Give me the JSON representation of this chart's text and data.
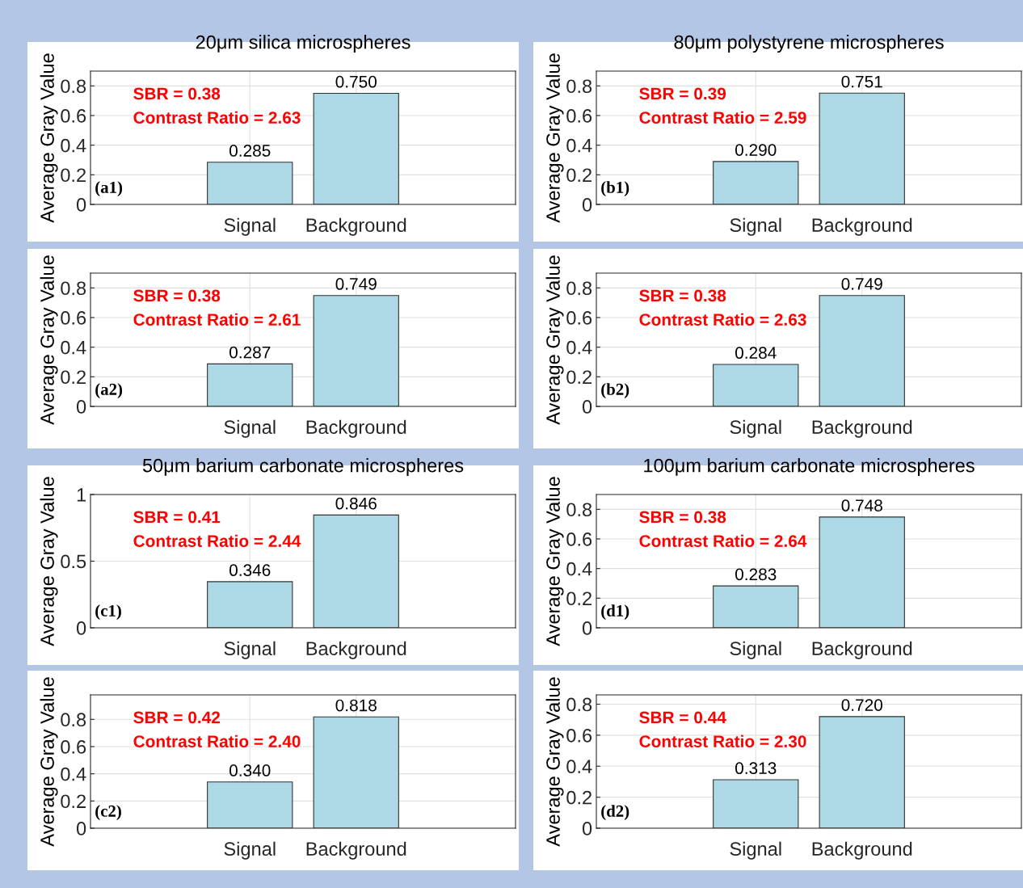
{
  "chart_data": [
    {
      "type": "bar",
      "title": "20μm silica microspheres",
      "ylabel": "Average Gray Value",
      "categories": [
        "Signal",
        "Background"
      ],
      "values": [
        0.285,
        0.75
      ],
      "value_labels": [
        "0.285",
        "0.750"
      ],
      "color": "#add8e6",
      "ylim": [
        0,
        0.9
      ],
      "yticks": [
        0,
        0.2,
        0.4,
        0.6,
        0.8
      ],
      "grid": true,
      "annotations": [
        "SBR = 0.38",
        "Contrast Ratio = 2.63",
        "(a1)"
      ]
    },
    {
      "type": "bar",
      "title": "80μm polystyrene microspheres",
      "ylabel": "Average Gray Value",
      "categories": [
        "Signal",
        "Background"
      ],
      "values": [
        0.29,
        0.751
      ],
      "value_labels": [
        "0.290",
        "0.751"
      ],
      "color": "#add8e6",
      "ylim": [
        0,
        0.9
      ],
      "yticks": [
        0,
        0.2,
        0.4,
        0.6,
        0.8
      ],
      "grid": true,
      "annotations": [
        "SBR = 0.39",
        "Contrast Ratio = 2.59",
        "(b1)"
      ]
    },
    {
      "type": "bar",
      "ylabel": "Average Gray Value",
      "categories": [
        "Signal",
        "Background"
      ],
      "values": [
        0.287,
        0.749
      ],
      "value_labels": [
        "0.287",
        "0.749"
      ],
      "color": "#add8e6",
      "ylim": [
        0,
        0.9
      ],
      "yticks": [
        0,
        0.2,
        0.4,
        0.6,
        0.8
      ],
      "grid": true,
      "annotations": [
        "SBR = 0.38",
        "Contrast Ratio = 2.61",
        "(a2)"
      ]
    },
    {
      "type": "bar",
      "ylabel": "Average Gray Value",
      "categories": [
        "Signal",
        "Background"
      ],
      "values": [
        0.284,
        0.749
      ],
      "value_labels": [
        "0.284",
        "0.749"
      ],
      "color": "#add8e6",
      "ylim": [
        0,
        0.9
      ],
      "yticks": [
        0,
        0.2,
        0.4,
        0.6,
        0.8
      ],
      "grid": true,
      "annotations": [
        "SBR = 0.38",
        "Contrast Ratio = 2.63",
        "(b2)"
      ]
    },
    {
      "type": "bar",
      "title": "50μm barium carbonate microspheres",
      "ylabel": "Average Gray Value",
      "categories": [
        "Signal",
        "Background"
      ],
      "values": [
        0.346,
        0.846
      ],
      "value_labels": [
        "0.346",
        "0.846"
      ],
      "color": "#add8e6",
      "ylim": [
        0,
        1
      ],
      "yticks": [
        0,
        0.5,
        1
      ],
      "grid": true,
      "annotations": [
        "SBR = 0.41",
        "Contrast Ratio = 2.44",
        "(c1)"
      ]
    },
    {
      "type": "bar",
      "title": "100μm barium carbonate microspheres",
      "ylabel": "Average Gray Value",
      "categories": [
        "Signal",
        "Background"
      ],
      "values": [
        0.283,
        0.748
      ],
      "value_labels": [
        "0.283",
        "0.748"
      ],
      "color": "#add8e6",
      "ylim": [
        0,
        0.9
      ],
      "yticks": [
        0,
        0.2,
        0.4,
        0.6,
        0.8
      ],
      "grid": true,
      "annotations": [
        "SBR = 0.38",
        "Contrast Ratio = 2.64",
        "(d1)"
      ]
    },
    {
      "type": "bar",
      "ylabel": "Average Gray Value",
      "categories": [
        "Signal",
        "Background"
      ],
      "values": [
        0.34,
        0.818
      ],
      "value_labels": [
        "0.340",
        "0.818"
      ],
      "color": "#add8e6",
      "ylim": [
        0,
        0.98
      ],
      "yticks": [
        0,
        0.2,
        0.4,
        0.6,
        0.8
      ],
      "grid": true,
      "annotations": [
        "SBR = 0.42",
        "Contrast Ratio = 2.40",
        "(c2)"
      ]
    },
    {
      "type": "bar",
      "ylabel": "Average Gray Value",
      "categories": [
        "Signal",
        "Background"
      ],
      "values": [
        0.313,
        0.72
      ],
      "value_labels": [
        "0.313",
        "0.720"
      ],
      "color": "#add8e6",
      "ylim": [
        0,
        0.86
      ],
      "yticks": [
        0,
        0.2,
        0.4,
        0.6,
        0.8
      ],
      "grid": true,
      "annotations": [
        "SBR = 0.44",
        "Contrast Ratio = 2.30",
        "(d2)"
      ]
    }
  ]
}
